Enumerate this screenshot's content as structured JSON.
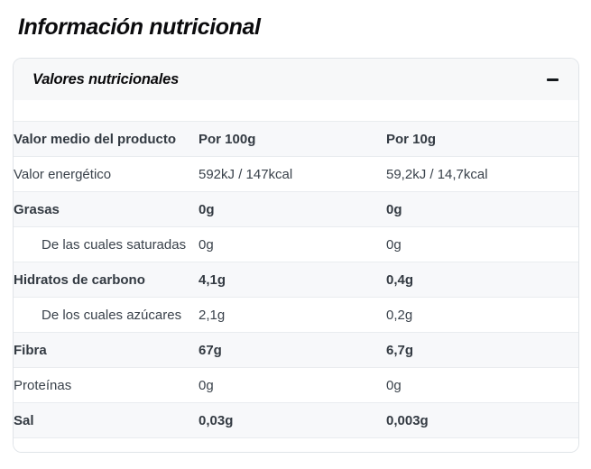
{
  "page": {
    "title": "Información nutricional"
  },
  "panel": {
    "title": "Valores nutricionales",
    "state": "expanded",
    "collapse_icon": "minus-icon",
    "table": {
      "columns": [
        "Valor medio del producto",
        "Por 100g",
        "Por 10g"
      ],
      "rows": [
        {
          "label": "Valor energético",
          "per_100g": "592kJ / 147kcal",
          "per_10g": "59,2kJ / 14,7kcal",
          "emphasis": false,
          "indent": false
        },
        {
          "label": "Grasas",
          "per_100g": "0g",
          "per_10g": "0g",
          "emphasis": true,
          "indent": false
        },
        {
          "label": "De las cuales saturadas",
          "per_100g": "0g",
          "per_10g": "0g",
          "emphasis": false,
          "indent": true
        },
        {
          "label": "Hidratos de carbono",
          "per_100g": "4,1g",
          "per_10g": "0,4g",
          "emphasis": true,
          "indent": false
        },
        {
          "label": "De los cuales azúcares",
          "per_100g": "2,1g",
          "per_10g": "0,2g",
          "emphasis": false,
          "indent": true
        },
        {
          "label": "Fibra",
          "per_100g": "67g",
          "per_10g": "6,7g",
          "emphasis": true,
          "indent": false
        },
        {
          "label": "Proteínas",
          "per_100g": "0g",
          "per_10g": "0g",
          "emphasis": false,
          "indent": false
        },
        {
          "label": "Sal",
          "per_100g": "0,03g",
          "per_10g": "0,003g",
          "emphasis": true,
          "indent": false
        }
      ]
    }
  },
  "colors": {
    "title_text": "#0b0b0d",
    "body_text": "#3a424b",
    "panel_header_bg": "#f7f8f9",
    "stripe_row_bg": "#f7f8fa",
    "divider": "#e9ecef",
    "card_border": "#e0e4e8",
    "page_bg": "#ffffff"
  }
}
